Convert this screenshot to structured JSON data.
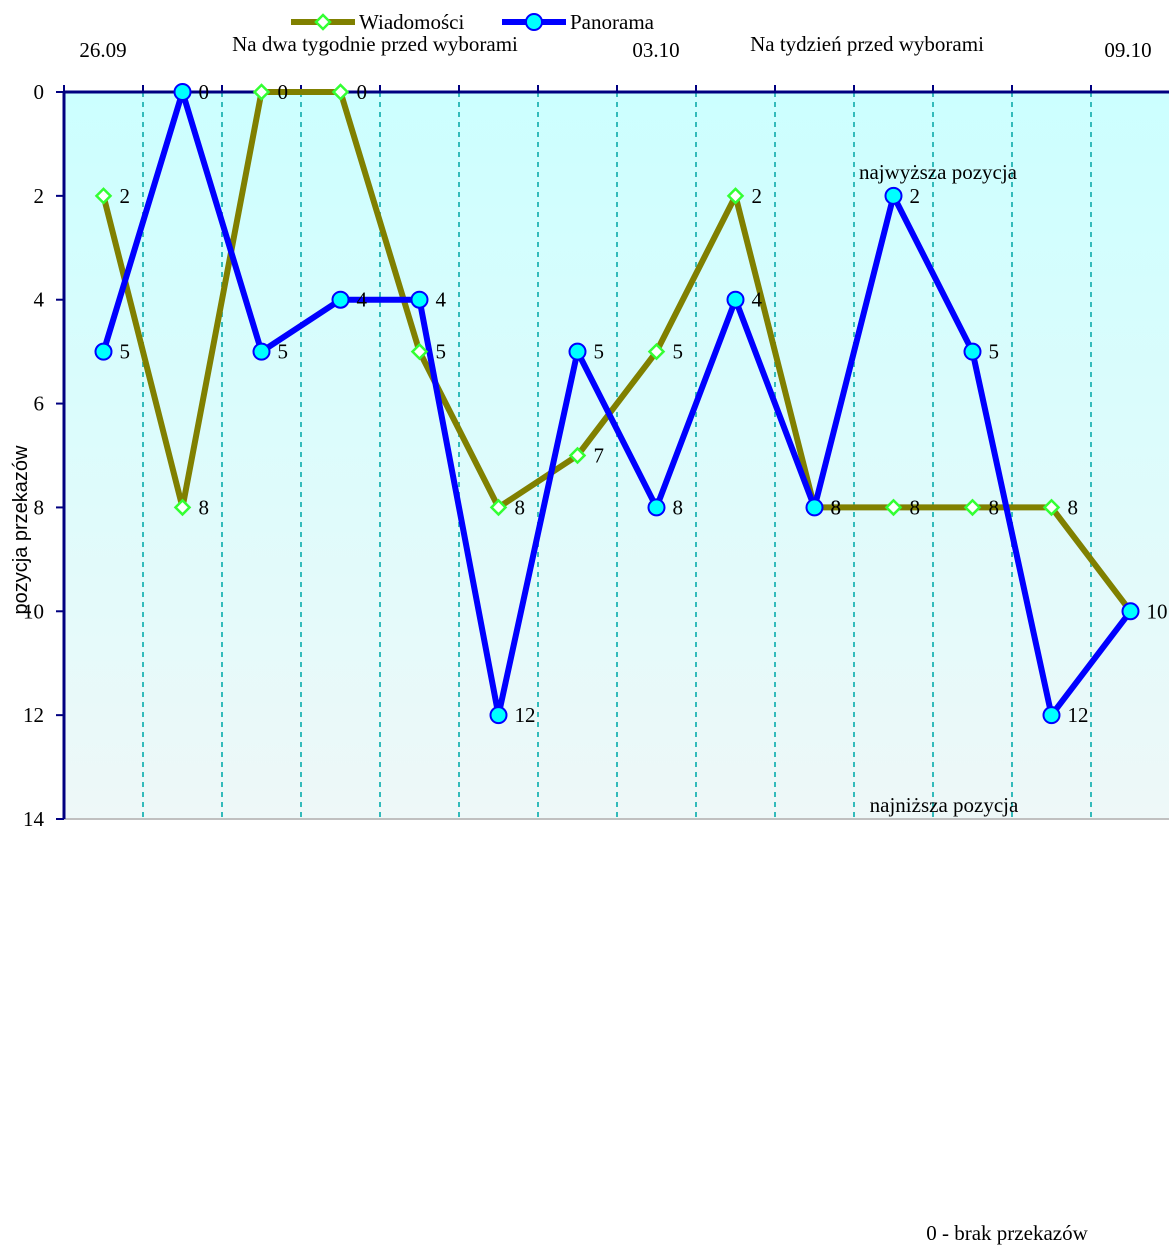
{
  "chart_data": {
    "type": "line",
    "ylabel": "pozycja przekazów",
    "ylim": [
      0,
      14
    ],
    "y_inverted": true,
    "y_ticks": [
      0,
      2,
      4,
      6,
      8,
      10,
      12,
      14
    ],
    "x_count": 14,
    "top_dates": [
      "26.09",
      "03.10",
      "09.10"
    ],
    "top_sections": [
      "Na dwa tygodnie przed wyborami",
      "Na tydzień przed wyborami"
    ],
    "annotations": {
      "top": "najwyższa pozycja",
      "bottom": "najniższa pozycja",
      "footnote": "0 - brak przekazów"
    },
    "grid": "vertical dashed",
    "legend": "top-center",
    "series": [
      {
        "name": "Wiadomości",
        "color": "#808000",
        "marker": "diamond",
        "marker_color": "#33ff33",
        "values": [
          2,
          8,
          0,
          0,
          5,
          8,
          7,
          5,
          2,
          8,
          8,
          8,
          8,
          10
        ],
        "labels": [
          "2",
          "8",
          "0",
          "0",
          "5",
          "8",
          "7",
          "5",
          "2",
          "8",
          "8",
          "8",
          "8",
          ""
        ]
      },
      {
        "name": "Panorama",
        "color": "#0000ff",
        "marker": "circle",
        "marker_color": "#00ffff",
        "values": [
          5,
          0,
          5,
          4,
          4,
          12,
          5,
          8,
          4,
          8,
          2,
          5,
          12,
          10
        ],
        "labels": [
          "5",
          "0",
          "5",
          "4",
          "4",
          "12",
          "5",
          "8",
          "4",
          "8",
          "2",
          "5",
          "12",
          "10"
        ]
      }
    ]
  }
}
